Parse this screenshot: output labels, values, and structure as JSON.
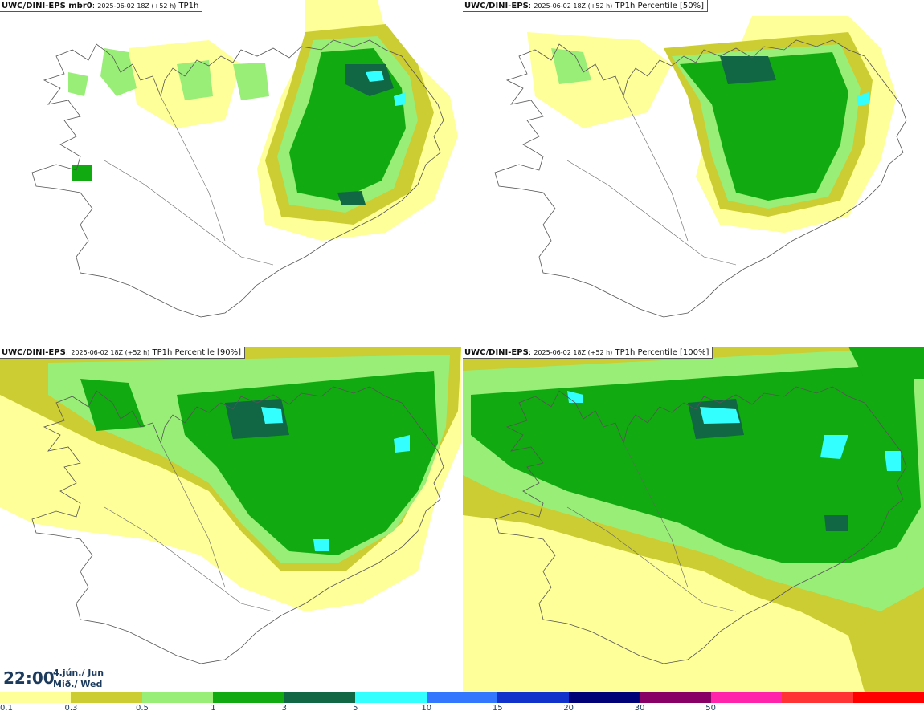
{
  "panels": [
    {
      "source": "UWC/DINI-EPS mbr0",
      "run": "2025-06-02 18Z (+52 h)",
      "field": "TP1h"
    },
    {
      "source": "UWC/DINI-EPS",
      "run": "2025-06-02 18Z (+52 h)",
      "field": "TP1h Percentile [50%]"
    },
    {
      "source": "UWC/DINI-EPS",
      "run": "2025-06-02 18Z (+52 h)",
      "field": "TP1h Percentile [90%]"
    },
    {
      "source": "UWC/DINI-EPS",
      "run": "2025-06-02 18Z (+52 h)",
      "field": "TP1h Percentile [100%]"
    }
  ],
  "valid_time": {
    "time": "22:00",
    "date_line": "4.jún./ Jun",
    "day_line": "Mið./ Wed"
  },
  "legend": {
    "labels": [
      "0.1",
      "0.3",
      "0.5",
      "1",
      "3",
      "5",
      "10",
      "15",
      "20",
      "30",
      "50"
    ],
    "colors": [
      "#ffff99",
      "#cccc33",
      "#99ee77",
      "#11aa11",
      "#116644",
      "#33ffff",
      "#3377ff",
      "#1133cc",
      "#000077",
      "#880066",
      "#ff22aa",
      "#ff3333",
      "#ff0000"
    ]
  }
}
